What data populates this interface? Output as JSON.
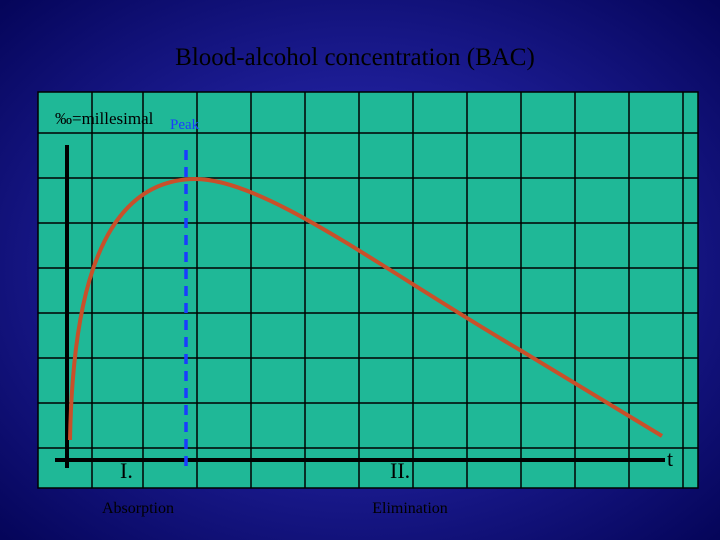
{
  "title": "Blood-alcohol concentration (BAC)",
  "unit_note": "‰=millesimal",
  "peak_label": "Peak",
  "phases": [
    {
      "numeral": "I.",
      "label": "Absorption"
    },
    {
      "numeral": "II.",
      "label": "Elimination"
    }
  ],
  "time_axis_label": "t"
}
